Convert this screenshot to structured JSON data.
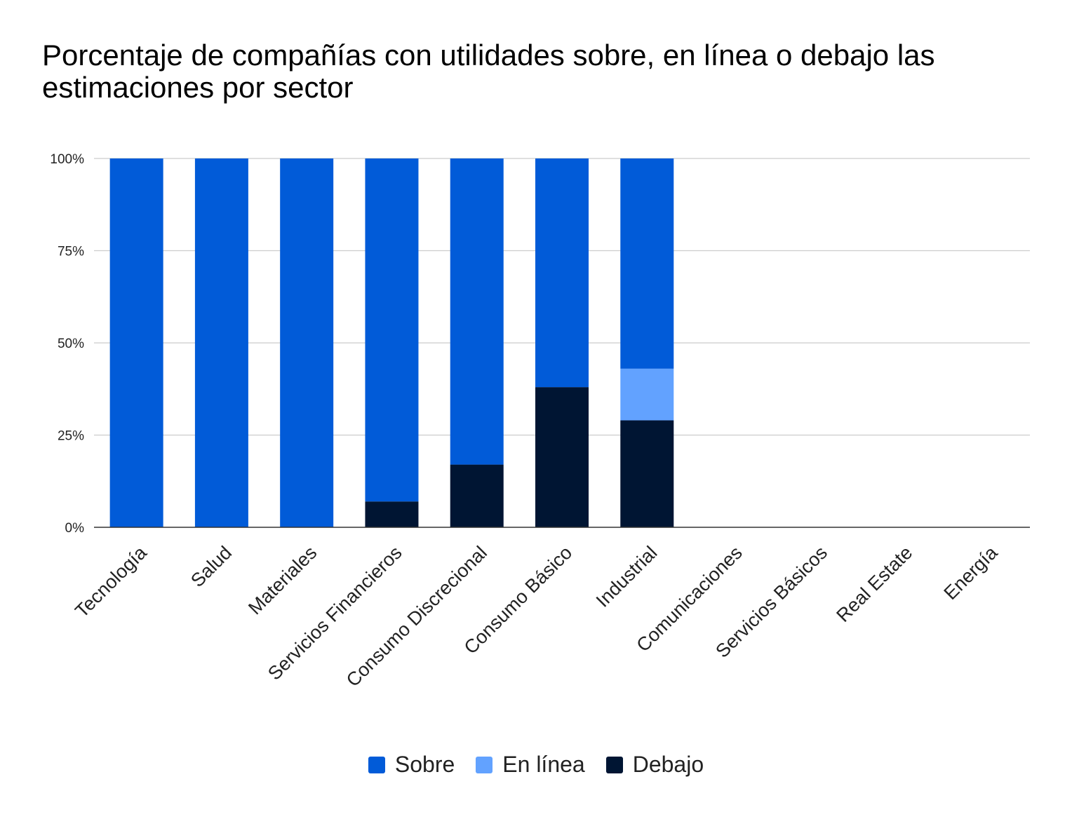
{
  "chart_data": {
    "type": "bar",
    "stacked": true,
    "title": "Porcentaje de compañías con utilidades sobre, en línea o debajo las estimaciones por sector",
    "categories": [
      "Tecnología",
      "Salud",
      "Materiales",
      "Servicios Financieros",
      "Consumo Discrecional",
      "Consumo Básico",
      "Industrial",
      "Comunicaciones",
      "Servicios Básicos",
      "Real Estate",
      "Energía"
    ],
    "series": [
      {
        "name": "Debajo",
        "color": "#001533",
        "values": [
          0,
          0,
          0,
          7,
          17,
          38,
          29,
          0,
          0,
          0,
          0
        ]
      },
      {
        "name": "En línea",
        "color": "#62a2ff",
        "values": [
          0,
          0,
          0,
          0,
          0,
          0,
          14,
          0,
          0,
          0,
          0
        ]
      },
      {
        "name": "Sobre",
        "color": "#015bd8",
        "values": [
          100,
          100,
          100,
          93,
          83,
          62,
          57,
          0,
          0,
          0,
          0
        ]
      }
    ],
    "legend_order": [
      "Sobre",
      "En línea",
      "Debajo"
    ],
    "ylim": [
      0,
      100
    ],
    "yticks": [
      "0%",
      "25%",
      "50%",
      "75%",
      "100%"
    ],
    "ytick_values": [
      0,
      25,
      50,
      75,
      100
    ],
    "grid": true,
    "legend_position": "bottom"
  }
}
